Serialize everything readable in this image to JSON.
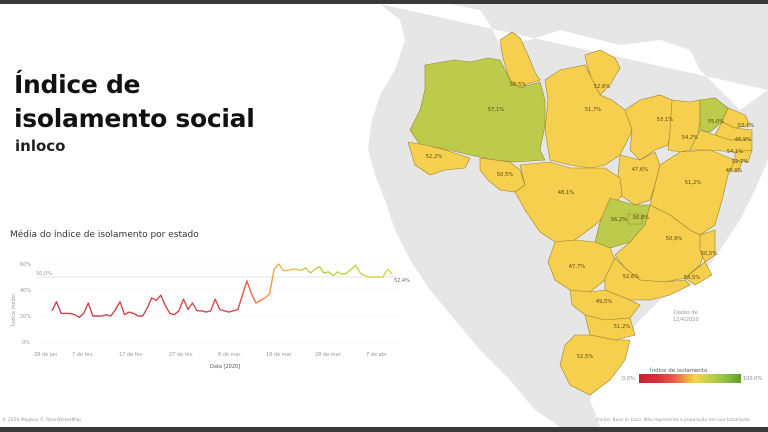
{
  "header": {
    "title_line1": "Índice de",
    "title_line2": "isolamento social",
    "subtitle": "inloco"
  },
  "chart": {
    "title": "Média do índice de isolamento por estado",
    "ylabel": "Índice médio",
    "xlabel": "Data [2020]",
    "y_ticks": [
      "60%",
      "40%",
      "20%",
      "0%"
    ],
    "x_ticks": [
      "28 de jan",
      "7 de fev",
      "17 de fev",
      "27 de fev",
      "8 de mar",
      "18 de mar",
      "28 de mar",
      "7 de abr"
    ],
    "reference_line_label": "50,0%",
    "last_value_label": "52,4%"
  },
  "map": {
    "legend_title": "Índice de isolamento",
    "legend_min": "0,0%",
    "legend_max": "100,0%",
    "date_note_line1": "Dados de",
    "date_note_line2": "12/4/2020",
    "states": [
      {
        "name": "RR",
        "value": "50,5%"
      },
      {
        "name": "AP",
        "value": "52,6%"
      },
      {
        "name": "AM",
        "value": "57,1%"
      },
      {
        "name": "PA",
        "value": "51,7%"
      },
      {
        "name": "MA",
        "value": "53,1%"
      },
      {
        "name": "CE",
        "value": "55,0%"
      },
      {
        "name": "RN",
        "value": "53,1%"
      },
      {
        "name": "PB",
        "value": "46,9%"
      },
      {
        "name": "PE",
        "value": "54,1%"
      },
      {
        "name": "AL",
        "value": "52,7%"
      },
      {
        "name": "SE",
        "value": "48,3%"
      },
      {
        "name": "PI",
        "value": "54,2%"
      },
      {
        "name": "AC",
        "value": "52,2%"
      },
      {
        "name": "RO",
        "value": "50,5%"
      },
      {
        "name": "MT",
        "value": "48,1%"
      },
      {
        "name": "TO",
        "value": "47,6%"
      },
      {
        "name": "BA",
        "value": "51,2%"
      },
      {
        "name": "GO",
        "value": "56,2%"
      },
      {
        "name": "DF",
        "value": "56,8%"
      },
      {
        "name": "MG",
        "value": "50,9%"
      },
      {
        "name": "ES",
        "value": "50,5%"
      },
      {
        "name": "MS",
        "value": "47,7%"
      },
      {
        "name": "SP",
        "value": "52,6%"
      },
      {
        "name": "RJ",
        "value": "54,5%"
      },
      {
        "name": "PR",
        "value": "49,5%"
      },
      {
        "name": "SC",
        "value": "51,2%"
      },
      {
        "name": "RS",
        "value": "52,5%"
      }
    ]
  },
  "footer": {
    "attribution": "© 2020 Mapbox © OpenStreetMap",
    "source": "Fonte: Base In Loco. Não representa a população em sua totalidade."
  },
  "colors": {
    "low": "#c8202f",
    "mid": "#f4c642",
    "high": "#5e9e2a",
    "state_yellow": "#f7cf4e",
    "state_green": "#bccb4b",
    "land_gray": "#e6e6e6",
    "border": "#8a7a2a"
  },
  "chart_data": {
    "type": "line",
    "title": "Média do índice de isolamento por estado",
    "xlabel": "Data [2020]",
    "ylabel": "Índice médio",
    "ylim": [
      0,
      65
    ],
    "grid": true,
    "reference_line": {
      "value": 50.0,
      "label": "50,0%"
    },
    "x_tick_labels": [
      "28 de jan",
      "7 de fev",
      "17 de fev",
      "27 de fev",
      "8 de mar",
      "18 de mar",
      "28 de mar",
      "7 de abr"
    ],
    "x_start": "2020-01-26",
    "x_end": "2020-04-12",
    "series": [
      {
        "name": "Média do índice de isolamento",
        "values": [
          24,
          31,
          22,
          22,
          22,
          21,
          19,
          22,
          30,
          20,
          20,
          20,
          21,
          20,
          25,
          31,
          21,
          23,
          22,
          20,
          20,
          26,
          34,
          32,
          36,
          28,
          22,
          21,
          24,
          33,
          25,
          30,
          24,
          24,
          23,
          24,
          33,
          25,
          24,
          23,
          24,
          25,
          36,
          47,
          37,
          30,
          32,
          34,
          37,
          56,
          60,
          55,
          55,
          56,
          56,
          55,
          57,
          53,
          56,
          58,
          53,
          54,
          51,
          54,
          52,
          53,
          56,
          59,
          53,
          51,
          50,
          50,
          50,
          50,
          56,
          52.4
        ],
        "last_value_label": "52,4%"
      }
    ],
    "color_scale": {
      "min": "0,0%",
      "max": "100,0%",
      "colors": [
        "#c8202f",
        "#f4c642",
        "#5e9e2a"
      ]
    }
  }
}
